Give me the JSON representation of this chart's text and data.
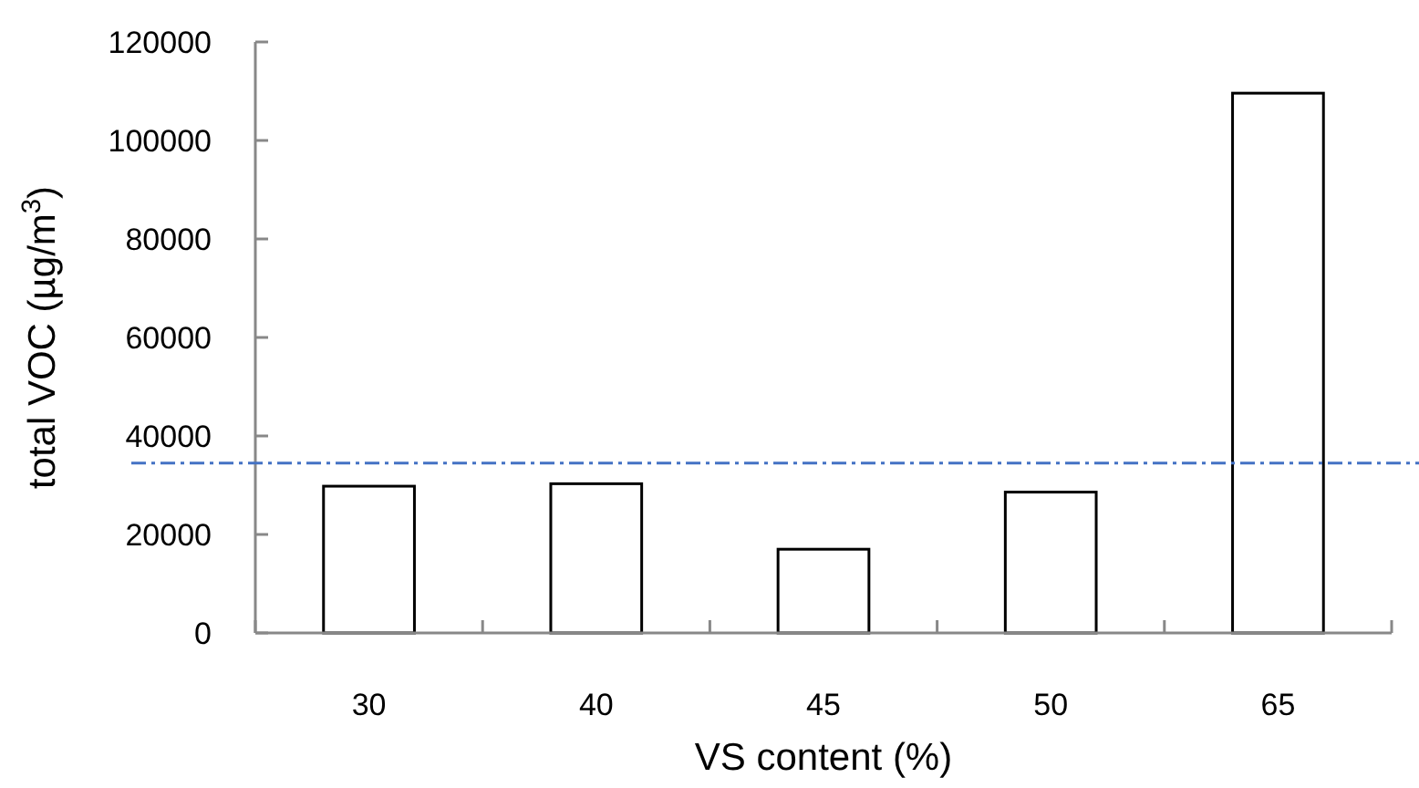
{
  "chart_data": {
    "type": "bar",
    "xlabel": "VS content (%)",
    "ylabel": "total VOC (µg/m$^{3}$)",
    "categories": [
      "30",
      "40",
      "45",
      "50",
      "65"
    ],
    "values": [
      29800,
      30300,
      17000,
      28600,
      109600
    ],
    "color": "#ffffff",
    "ylim": [
      0,
      120000
    ],
    "yticks": [
      0,
      20000,
      40000,
      60000,
      80000,
      100000,
      120000
    ],
    "grid": false,
    "ref_lines": [
      {
        "axis": "y",
        "value": 34500,
        "color": "#4472c4",
        "line_style": "dashdot"
      }
    ]
  }
}
